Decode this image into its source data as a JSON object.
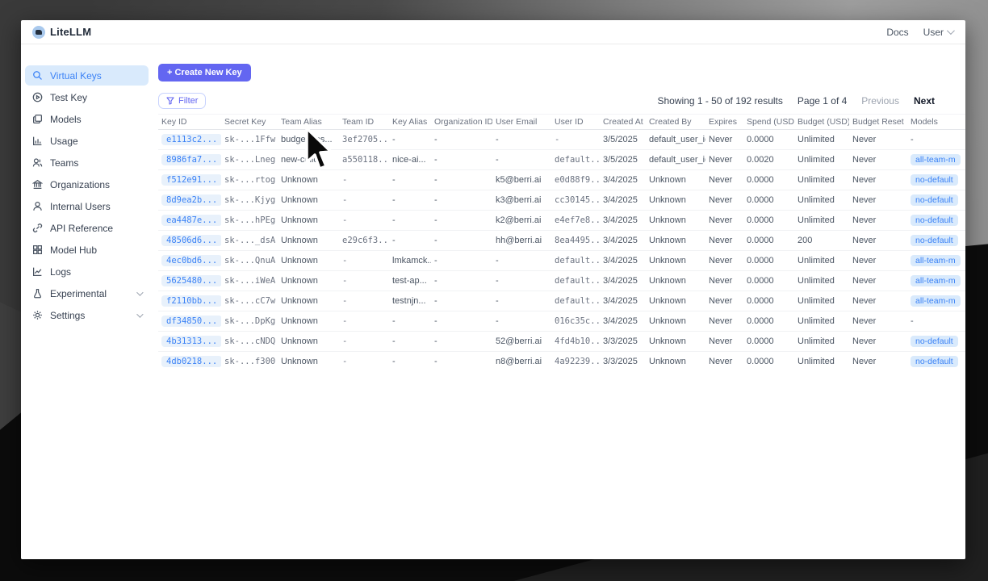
{
  "header": {
    "brand": "LiteLLM",
    "docs_label": "Docs",
    "user_label": "User"
  },
  "sidebar": {
    "items": [
      {
        "label": "Virtual Keys",
        "icon": "search-icon",
        "active": true,
        "chevron": false
      },
      {
        "label": "Test Key",
        "icon": "play-circle-icon",
        "active": false,
        "chevron": false
      },
      {
        "label": "Models",
        "icon": "models-icon",
        "active": false,
        "chevron": false
      },
      {
        "label": "Usage",
        "icon": "usage-chart-icon",
        "active": false,
        "chevron": false
      },
      {
        "label": "Teams",
        "icon": "teams-icon",
        "active": false,
        "chevron": false
      },
      {
        "label": "Organizations",
        "icon": "organizations-icon",
        "active": false,
        "chevron": false
      },
      {
        "label": "Internal Users",
        "icon": "internal-users-icon",
        "active": false,
        "chevron": false
      },
      {
        "label": "API Reference",
        "icon": "api-link-icon",
        "active": false,
        "chevron": false
      },
      {
        "label": "Model Hub",
        "icon": "model-hub-grid-icon",
        "active": false,
        "chevron": false
      },
      {
        "label": "Logs",
        "icon": "logs-chart-icon",
        "active": false,
        "chevron": false
      },
      {
        "label": "Experimental",
        "icon": "flask-icon",
        "active": false,
        "chevron": true
      },
      {
        "label": "Settings",
        "icon": "gear-icon",
        "active": false,
        "chevron": true
      }
    ]
  },
  "toolbar": {
    "create_button": "+ Create New Key",
    "filter_button": "Filter"
  },
  "pagination": {
    "summary": "Showing 1 - 50 of 192 results",
    "page_info": "Page 1 of 4",
    "previous": "Previous",
    "next": "Next"
  },
  "table": {
    "columns": [
      "Key ID",
      "Secret Key",
      "Team Alias",
      "Team ID",
      "Key Alias",
      "Organization ID",
      "User Email",
      "User ID",
      "Created At",
      "Created By",
      "Expires",
      "Spend (USD)",
      "Budget (USD)",
      "Budget Reset",
      "Models"
    ],
    "rows": [
      [
        "e1113c2...",
        "sk-...1Ffw",
        "budget_tes...",
        "3ef2705...",
        "-",
        "-",
        "-",
        "-",
        "3/5/2025",
        "default_user_id",
        "Never",
        "0.0000",
        "Unlimited",
        "Never",
        "-"
      ],
      [
        "8986fa7...",
        "sk-...Lneg",
        "new-collo...",
        "a550118...",
        "nice-ai...",
        "-",
        "-",
        "default...",
        "3/5/2025",
        "default_user_id",
        "Never",
        "0.0020",
        "Unlimited",
        "Never",
        "all-team-m"
      ],
      [
        "f512e91...",
        "sk-...rtog",
        "Unknown",
        "-",
        "-",
        "-",
        "k5@berri.ai",
        "e0d88f9...",
        "3/4/2025",
        "Unknown",
        "Never",
        "0.0000",
        "Unlimited",
        "Never",
        "no-default"
      ],
      [
        "8d9ea2b...",
        "sk-...Kjyg",
        "Unknown",
        "-",
        "-",
        "-",
        "k3@berri.ai",
        "cc30145...",
        "3/4/2025",
        "Unknown",
        "Never",
        "0.0000",
        "Unlimited",
        "Never",
        "no-default"
      ],
      [
        "ea4487e...",
        "sk-...hPEg",
        "Unknown",
        "-",
        "-",
        "-",
        "k2@berri.ai",
        "e4ef7e8...",
        "3/4/2025",
        "Unknown",
        "Never",
        "0.0000",
        "Unlimited",
        "Never",
        "no-default"
      ],
      [
        "48506d6...",
        "sk-..._dsA",
        "Unknown",
        "e29c6f3...",
        "-",
        "-",
        "hh@berri.ai",
        "8ea4495...",
        "3/4/2025",
        "Unknown",
        "Never",
        "0.0000",
        "200",
        "Never",
        "no-default"
      ],
      [
        "4ec0bd6...",
        "sk-...QnuA",
        "Unknown",
        "-",
        "lmkamck...",
        "-",
        "-",
        "default...",
        "3/4/2025",
        "Unknown",
        "Never",
        "0.0000",
        "Unlimited",
        "Never",
        "all-team-m"
      ],
      [
        "5625480...",
        "sk-...iWeA",
        "Unknown",
        "-",
        "test-ap...",
        "-",
        "-",
        "default...",
        "3/4/2025",
        "Unknown",
        "Never",
        "0.0000",
        "Unlimited",
        "Never",
        "all-team-m"
      ],
      [
        "f2110bb...",
        "sk-...cC7w",
        "Unknown",
        "-",
        "testnjn...",
        "-",
        "-",
        "default...",
        "3/4/2025",
        "Unknown",
        "Never",
        "0.0000",
        "Unlimited",
        "Never",
        "all-team-m"
      ],
      [
        "df34850...",
        "sk-...DpKg",
        "Unknown",
        "-",
        "-",
        "-",
        "-",
        "016c35c...",
        "3/4/2025",
        "Unknown",
        "Never",
        "0.0000",
        "Unlimited",
        "Never",
        "-"
      ],
      [
        "4b31313...",
        "sk-...cNDQ",
        "Unknown",
        "-",
        "-",
        "-",
        "52@berri.ai",
        "4fd4b10...",
        "3/3/2025",
        "Unknown",
        "Never",
        "0.0000",
        "Unlimited",
        "Never",
        "no-default"
      ],
      [
        "4db0218...",
        "sk-...f300",
        "Unknown",
        "-",
        "-",
        "-",
        "n8@berri.ai",
        "4a92239...",
        "3/3/2025",
        "Unknown",
        "Never",
        "0.0000",
        "Unlimited",
        "Never",
        "no-default"
      ]
    ]
  },
  "colors": {
    "accent": "#6366f1",
    "active_item_bg": "#d9eafc",
    "key_pill_bg": "#e8f1fb",
    "key_pill_text": "#3b82f6",
    "badge_bg": "#d9eafc",
    "badge_text": "#3b82f6"
  }
}
